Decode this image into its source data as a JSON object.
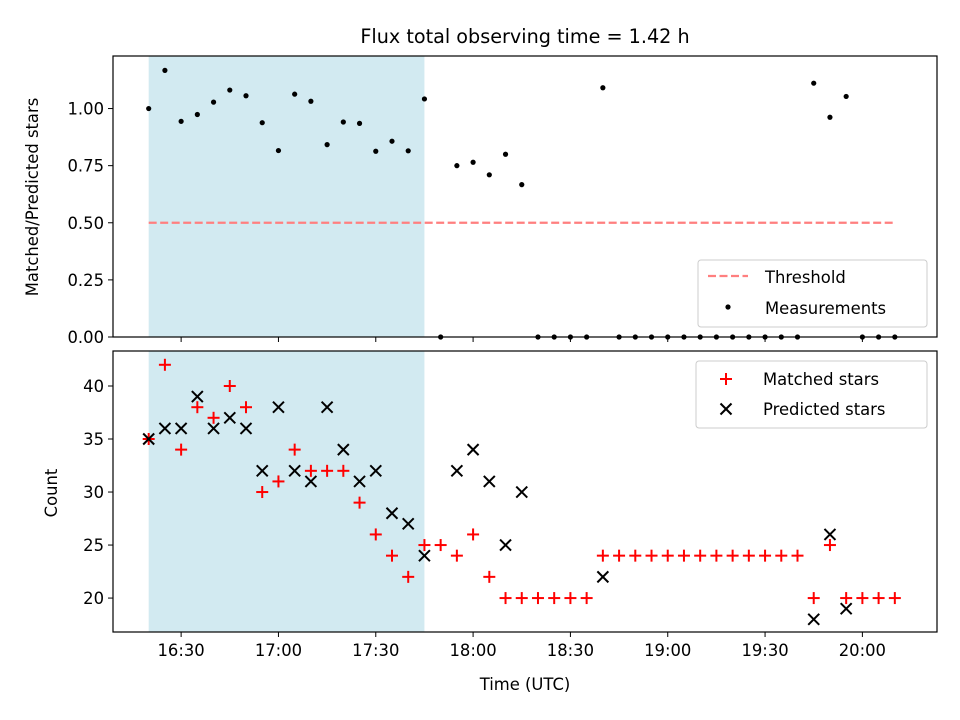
{
  "title": "Flux total observing time = 1.42 h",
  "colors": {
    "highlight": "#add8e6",
    "threshold": "#ff7f7f",
    "measurement": "#000000",
    "matched": "#ff0000",
    "predicted": "#000000"
  },
  "chart_data": [
    {
      "type": "scatter",
      "panel": "top",
      "ylabel": "Matched/Predicted stars",
      "ylim": [
        0,
        1.23
      ],
      "yticks": [
        "0.00",
        "0.25",
        "0.50",
        "0.75",
        "1.00"
      ],
      "highlight_span": [
        "16:20",
        "17:45"
      ],
      "threshold": {
        "name": "Threshold",
        "value": 0.5,
        "x_range": [
          "16:20",
          "20:10"
        ]
      },
      "legend": {
        "position": "lower-right",
        "entries": [
          "Threshold",
          "Measurements"
        ]
      },
      "series": [
        {
          "name": "Measurements",
          "marker": "dot",
          "points": [
            [
              "16:20",
              1.0
            ],
            [
              "16:25",
              1.167
            ],
            [
              "16:30",
              0.944
            ],
            [
              "16:35",
              0.974
            ],
            [
              "16:40",
              1.028
            ],
            [
              "16:45",
              1.081
            ],
            [
              "16:50",
              1.056
            ],
            [
              "16:55",
              0.938
            ],
            [
              "17:00",
              0.816
            ],
            [
              "17:05",
              1.063
            ],
            [
              "17:10",
              1.032
            ],
            [
              "17:15",
              0.842
            ],
            [
              "17:20",
              0.941
            ],
            [
              "17:25",
              0.935
            ],
            [
              "17:30",
              0.813
            ],
            [
              "17:35",
              0.857
            ],
            [
              "17:40",
              0.815
            ],
            [
              "17:45",
              1.042
            ],
            [
              "17:50",
              0.0
            ],
            [
              "17:55",
              0.75
            ],
            [
              "18:00",
              0.765
            ],
            [
              "18:05",
              0.71
            ],
            [
              "18:10",
              0.8
            ],
            [
              "18:15",
              0.667
            ],
            [
              "18:20",
              0.0
            ],
            [
              "18:25",
              0.0
            ],
            [
              "18:30",
              0.0
            ],
            [
              "18:35",
              0.0
            ],
            [
              "18:40",
              1.091
            ],
            [
              "18:45",
              0.0
            ],
            [
              "18:50",
              0.0
            ],
            [
              "18:55",
              0.0
            ],
            [
              "19:00",
              0.0
            ],
            [
              "19:05",
              0.0
            ],
            [
              "19:10",
              0.0
            ],
            [
              "19:15",
              0.0
            ],
            [
              "19:20",
              0.0
            ],
            [
              "19:25",
              0.0
            ],
            [
              "19:30",
              0.0
            ],
            [
              "19:35",
              0.0
            ],
            [
              "19:40",
              0.0
            ],
            [
              "19:45",
              1.111
            ],
            [
              "19:50",
              0.962
            ],
            [
              "19:55",
              1.053
            ],
            [
              "20:00",
              0.0
            ],
            [
              "20:05",
              0.0
            ],
            [
              "20:10",
              0.0
            ]
          ]
        }
      ]
    },
    {
      "type": "scatter",
      "panel": "bottom",
      "xlabel": "Time (UTC)",
      "ylabel": "Count",
      "ylim": [
        16.8,
        43.3
      ],
      "yticks": [
        "20",
        "25",
        "30",
        "35",
        "40"
      ],
      "xticks": [
        "16:30",
        "17:00",
        "17:30",
        "18:00",
        "18:30",
        "19:00",
        "19:30",
        "20:00"
      ],
      "x_range": [
        "16:09",
        "20:23"
      ],
      "highlight_span": [
        "16:20",
        "17:45"
      ],
      "legend": {
        "position": "upper-right",
        "entries": [
          "Matched stars",
          "Predicted stars"
        ]
      },
      "series": [
        {
          "name": "Matched stars",
          "marker": "plus",
          "points": [
            [
              "16:20",
              35
            ],
            [
              "16:25",
              42
            ],
            [
              "16:30",
              34
            ],
            [
              "16:35",
              38
            ],
            [
              "16:40",
              37
            ],
            [
              "16:45",
              40
            ],
            [
              "16:50",
              38
            ],
            [
              "16:55",
              30
            ],
            [
              "17:00",
              31
            ],
            [
              "17:05",
              34
            ],
            [
              "17:10",
              32
            ],
            [
              "17:15",
              32
            ],
            [
              "17:20",
              32
            ],
            [
              "17:25",
              29
            ],
            [
              "17:30",
              26
            ],
            [
              "17:35",
              24
            ],
            [
              "17:40",
              22
            ],
            [
              "17:45",
              25
            ],
            [
              "17:50",
              25
            ],
            [
              "17:55",
              24
            ],
            [
              "18:00",
              26
            ],
            [
              "18:05",
              22
            ],
            [
              "18:10",
              20
            ],
            [
              "18:15",
              20
            ],
            [
              "18:20",
              20
            ],
            [
              "18:25",
              20
            ],
            [
              "18:30",
              20
            ],
            [
              "18:35",
              20
            ],
            [
              "18:40",
              24
            ],
            [
              "18:45",
              24
            ],
            [
              "18:50",
              24
            ],
            [
              "18:55",
              24
            ],
            [
              "19:00",
              24
            ],
            [
              "19:05",
              24
            ],
            [
              "19:10",
              24
            ],
            [
              "19:15",
              24
            ],
            [
              "19:20",
              24
            ],
            [
              "19:25",
              24
            ],
            [
              "19:30",
              24
            ],
            [
              "19:35",
              24
            ],
            [
              "19:40",
              24
            ],
            [
              "19:45",
              20
            ],
            [
              "19:50",
              25
            ],
            [
              "19:55",
              20
            ],
            [
              "20:00",
              20
            ],
            [
              "20:05",
              20
            ],
            [
              "20:10",
              20
            ]
          ]
        },
        {
          "name": "Predicted stars",
          "marker": "cross",
          "points": [
            [
              "16:20",
              35
            ],
            [
              "16:25",
              36
            ],
            [
              "16:30",
              36
            ],
            [
              "16:35",
              39
            ],
            [
              "16:40",
              36
            ],
            [
              "16:45",
              37
            ],
            [
              "16:50",
              36
            ],
            [
              "16:55",
              32
            ],
            [
              "17:00",
              38
            ],
            [
              "17:05",
              32
            ],
            [
              "17:10",
              31
            ],
            [
              "17:15",
              38
            ],
            [
              "17:20",
              34
            ],
            [
              "17:25",
              31
            ],
            [
              "17:30",
              32
            ],
            [
              "17:35",
              28
            ],
            [
              "17:40",
              27
            ],
            [
              "17:45",
              24
            ],
            [
              "17:55",
              32
            ],
            [
              "18:00",
              34
            ],
            [
              "18:05",
              31
            ],
            [
              "18:10",
              25
            ],
            [
              "18:15",
              30
            ],
            [
              "18:40",
              22
            ],
            [
              "19:45",
              18
            ],
            [
              "19:50",
              26
            ],
            [
              "19:55",
              19
            ]
          ]
        }
      ]
    }
  ]
}
